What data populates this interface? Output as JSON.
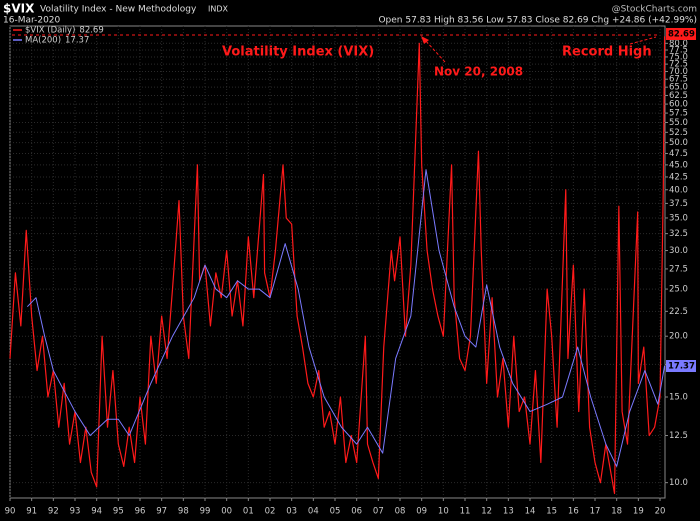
{
  "chart_data": {
    "type": "line",
    "title": "$VIX",
    "subtitle": "Volatility Index - New Methodology",
    "exchange": "INDX",
    "date": "16-Mar-2020",
    "source": "@StockCharts.com",
    "quote": "Open 57.83 High 83.56 Low 57.83 Close 82.69 Chg +24.86 (+42.99%)",
    "annotations": [
      "Volatility Index (VIX)",
      "Nov 20, 2008",
      "Record High"
    ],
    "log_scale": true,
    "grid": true,
    "legend": "top-left",
    "xlim": [
      1990,
      2020.23
    ],
    "ylim": [
      9.3,
      84
    ],
    "xticks": [
      {
        "value": 1990,
        "label": "90"
      },
      {
        "value": 1991,
        "label": "91"
      },
      {
        "value": 1992,
        "label": "92"
      },
      {
        "value": 1993,
        "label": "93"
      },
      {
        "value": 1994,
        "label": "94"
      },
      {
        "value": 1995,
        "label": "95"
      },
      {
        "value": 1996,
        "label": "96"
      },
      {
        "value": 1997,
        "label": "97"
      },
      {
        "value": 1998,
        "label": "98"
      },
      {
        "value": 1999,
        "label": "99"
      },
      {
        "value": 2000,
        "label": "00"
      },
      {
        "value": 2001,
        "label": "01"
      },
      {
        "value": 2002,
        "label": "02"
      },
      {
        "value": 2003,
        "label": "03"
      },
      {
        "value": 2004,
        "label": "04"
      },
      {
        "value": 2005,
        "label": "05"
      },
      {
        "value": 2006,
        "label": "06"
      },
      {
        "value": 2007,
        "label": "07"
      },
      {
        "value": 2008,
        "label": "08"
      },
      {
        "value": 2009,
        "label": "09"
      },
      {
        "value": 2010,
        "label": "10"
      },
      {
        "value": 2011,
        "label": "11"
      },
      {
        "value": 2012,
        "label": "12"
      },
      {
        "value": 2013,
        "label": "13"
      },
      {
        "value": 2014,
        "label": "14"
      },
      {
        "value": 2015,
        "label": "15"
      },
      {
        "value": 2016,
        "label": "16"
      },
      {
        "value": 2017,
        "label": "17"
      },
      {
        "value": 2018,
        "label": "18"
      },
      {
        "value": 2019,
        "label": "19"
      },
      {
        "value": 2020,
        "label": "20"
      }
    ],
    "yticks": [
      {
        "value": 10,
        "label": "10.0"
      },
      {
        "value": 12.5,
        "label": "12.5"
      },
      {
        "value": 15,
        "label": "15.0"
      },
      {
        "value": 17.5,
        "label": "17.5"
      },
      {
        "value": 20,
        "label": "20.0"
      },
      {
        "value": 22.5,
        "label": "22.5"
      },
      {
        "value": 25,
        "label": "25.0"
      },
      {
        "value": 27.5,
        "label": "27.5"
      },
      {
        "value": 30,
        "label": "30.0"
      },
      {
        "value": 32.5,
        "label": "32.5"
      },
      {
        "value": 35,
        "label": "35.0"
      },
      {
        "value": 37.5,
        "label": "37.5"
      },
      {
        "value": 40,
        "label": "40.0"
      },
      {
        "value": 42.5,
        "label": "42.5"
      },
      {
        "value": 45,
        "label": "45.0"
      },
      {
        "value": 47.5,
        "label": "47.5"
      },
      {
        "value": 50,
        "label": "50.0"
      },
      {
        "value": 52.5,
        "label": "52.5"
      },
      {
        "value": 55,
        "label": "55.0"
      },
      {
        "value": 57.5,
        "label": "57.5"
      },
      {
        "value": 60,
        "label": "60.0"
      },
      {
        "value": 62.5,
        "label": "62.5"
      },
      {
        "value": 65,
        "label": "65.0"
      },
      {
        "value": 67.5,
        "label": "67.5"
      },
      {
        "value": 70,
        "label": "70.0"
      },
      {
        "value": 72.5,
        "label": "72.5"
      },
      {
        "value": 75,
        "label": "75.0"
      },
      {
        "value": 77.5,
        "label": "77.5"
      },
      {
        "value": 80,
        "label": "80.0"
      }
    ],
    "series": [
      {
        "name": "$VIX (Daily)",
        "legend_value": "82.69",
        "end_label": "82.69",
        "color": "#ff1a1a",
        "x": [
          1990,
          1990.25,
          1990.5,
          1990.75,
          1991,
          1991.25,
          1991.5,
          1991.75,
          1992,
          1992.25,
          1992.5,
          1992.75,
          1993,
          1993.25,
          1993.5,
          1993.75,
          1994,
          1994.25,
          1994.5,
          1994.75,
          1995,
          1995.25,
          1995.5,
          1995.75,
          1996,
          1996.25,
          1996.5,
          1996.75,
          1997,
          1997.25,
          1997.5,
          1997.8,
          1998,
          1998.25,
          1998.65,
          1998.75,
          1999,
          1999.25,
          1999.5,
          1999.75,
          2000,
          2000.25,
          2000.5,
          2000.75,
          2001,
          2001.25,
          2001.7,
          2001.75,
          2002,
          2002.25,
          2002.6,
          2002.75,
          2003,
          2003.25,
          2003.5,
          2003.75,
          2004,
          2004.25,
          2004.5,
          2004.75,
          2005,
          2005.25,
          2005.5,
          2005.75,
          2006,
          2006.4,
          2006.5,
          2006.75,
          2007,
          2007.25,
          2007.6,
          2007.75,
          2008,
          2008.25,
          2008.5,
          2008.89,
          2009,
          2009.25,
          2009.5,
          2009.75,
          2010,
          2010.38,
          2010.5,
          2010.75,
          2011,
          2011.25,
          2011.62,
          2011.75,
          2012,
          2012.25,
          2012.5,
          2012.75,
          2013,
          2013.25,
          2013.5,
          2013.75,
          2014,
          2014.25,
          2014.5,
          2014.79,
          2015,
          2015.25,
          2015.65,
          2015.75,
          2016,
          2016.25,
          2016.5,
          2016.75,
          2017,
          2017.25,
          2017.5,
          2017.9,
          2018.1,
          2018.25,
          2018.5,
          2018.97,
          2019,
          2019.25,
          2019.5,
          2019.75,
          2020,
          2020.15,
          2020.21
        ],
        "values": [
          18,
          27,
          21,
          33,
          22,
          17,
          20,
          15,
          17,
          13,
          16,
          12,
          14,
          11,
          13,
          10.5,
          9.8,
          20,
          13,
          17,
          12,
          10.8,
          13,
          11,
          15,
          12,
          20,
          16,
          22,
          18,
          25,
          38,
          22,
          18,
          45,
          26,
          28,
          21,
          27,
          24,
          30,
          22,
          26,
          21,
          32,
          24,
          43,
          27,
          24,
          30,
          45,
          35,
          34,
          22,
          19,
          16,
          15,
          17,
          13,
          14,
          12,
          15,
          11,
          12.5,
          11,
          20,
          12,
          11,
          10.2,
          19,
          30,
          26,
          32,
          20,
          28,
          80,
          45,
          30,
          25,
          22,
          20,
          45,
          24,
          18,
          17,
          20,
          48,
          30,
          16,
          24,
          15,
          18,
          13,
          20,
          14,
          15,
          12,
          17,
          11,
          25,
          20,
          13,
          40,
          18,
          28,
          14,
          25,
          13,
          11,
          10,
          12,
          9.5,
          37,
          14,
          12,
          36,
          16,
          19,
          12.5,
          13,
          15,
          40,
          82.69
        ]
      },
      {
        "name": "MA(200)",
        "legend_value": "17.37",
        "end_label": "17.37",
        "color": "#7a7aff",
        "x": [
          1990.8,
          1991.2,
          1991.6,
          1992,
          1993,
          1993.7,
          1994.5,
          1995,
          1995.5,
          1996.5,
          1997.5,
          1998.5,
          1999,
          1999.5,
          2000,
          2000.5,
          2001,
          2001.5,
          2002,
          2002.7,
          2003.3,
          2003.8,
          2004.5,
          2005.3,
          2006,
          2006.5,
          2007.2,
          2007.8,
          2008.5,
          2009.2,
          2009.8,
          2010.5,
          2011,
          2011.5,
          2012,
          2012.6,
          2013.2,
          2014,
          2014.8,
          2015.5,
          2016.2,
          2016.8,
          2017.5,
          2018,
          2018.6,
          2019.3,
          2019.9,
          2020.21
        ],
        "values": [
          23,
          24,
          20,
          17,
          14,
          12.5,
          13.5,
          13.5,
          12.5,
          16,
          20,
          24,
          28,
          25,
          24,
          26,
          25,
          25,
          24,
          31,
          25,
          19,
          15,
          13,
          12,
          13,
          11.5,
          18,
          22,
          44,
          30,
          23,
          20,
          19,
          25.5,
          19,
          16,
          14,
          14.5,
          15,
          19,
          15,
          12,
          10.8,
          14,
          17,
          14.5,
          17.37
        ]
      }
    ]
  }
}
